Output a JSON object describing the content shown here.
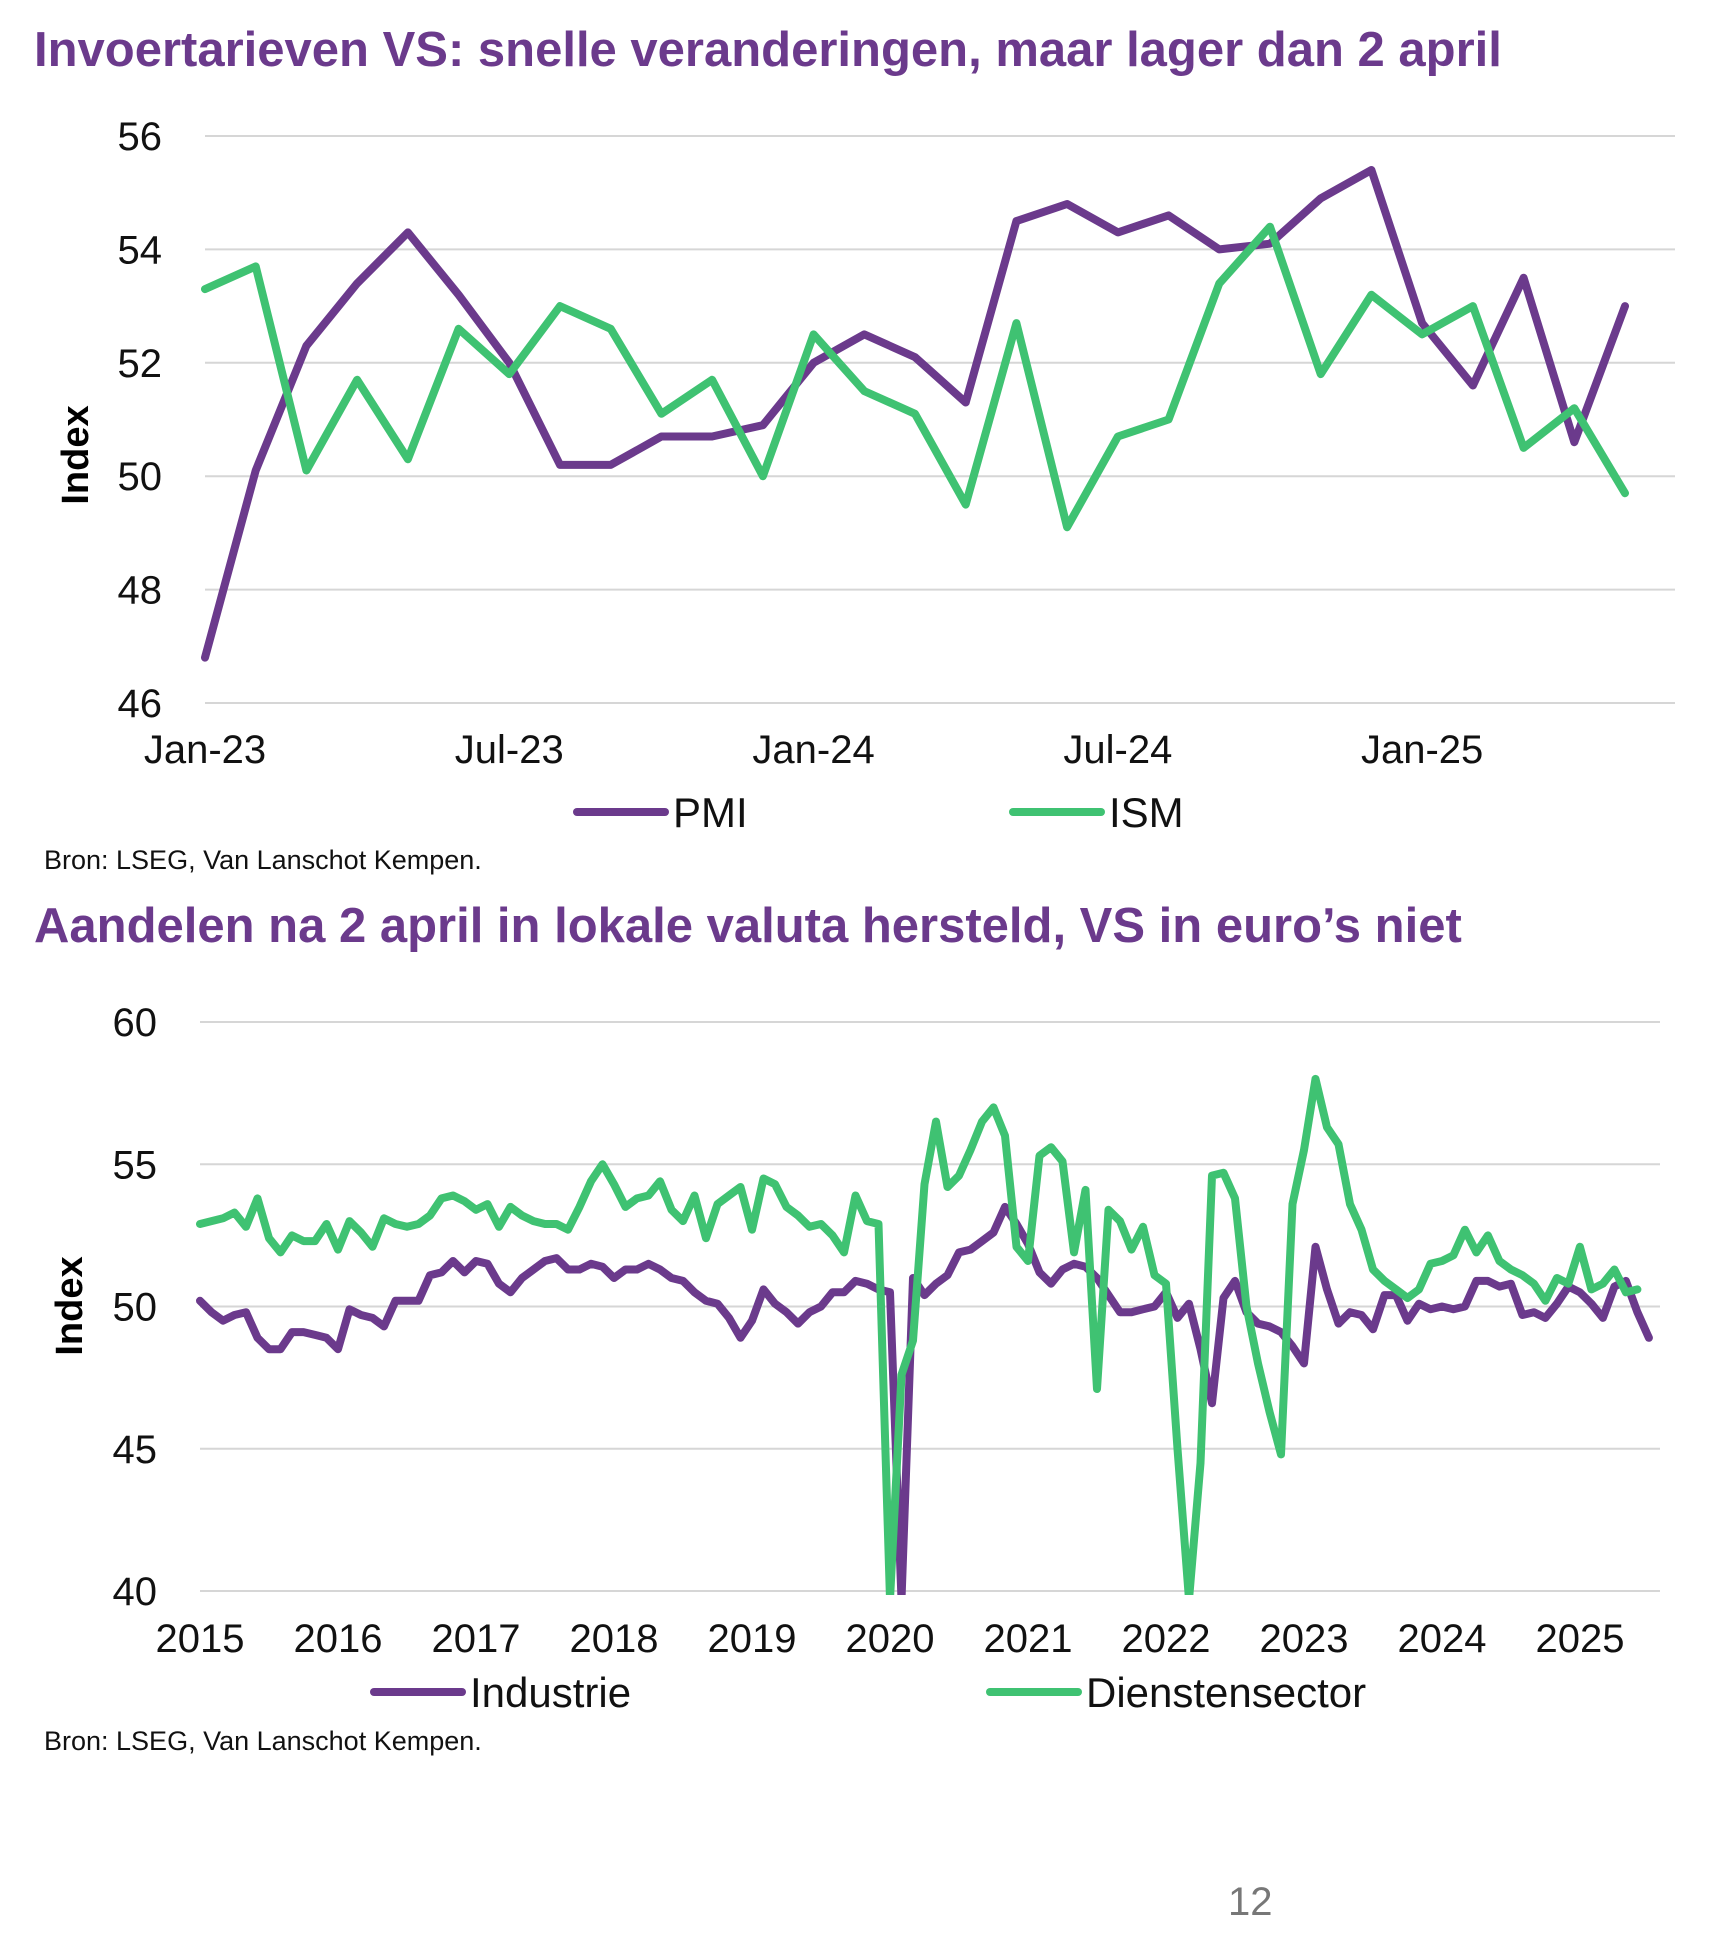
{
  "page_number": "12",
  "colors": {
    "title": "#6b3a8c",
    "pmi": "#6b3a8c",
    "ism": "#3fc272",
    "grid": "#d6d6d6"
  },
  "chart_data": [
    {
      "type": "line",
      "title": "Invoertarieven VS: snelle veranderingen, maar lager dan 2 april",
      "ylabel": "Index",
      "xlabel": "",
      "ylim": [
        46,
        56
      ],
      "yticks": [
        46,
        48,
        50,
        52,
        54,
        56
      ],
      "xtick_labels": [
        {
          "label": "Jan-23",
          "index": 0
        },
        {
          "label": "Jul-23",
          "index": 6
        },
        {
          "label": "Jan-24",
          "index": 12
        },
        {
          "label": "Jul-24",
          "index": 18
        },
        {
          "label": "Jan-25",
          "index": 24
        }
      ],
      "x": [
        "Jan-23",
        "Feb-23",
        "Mar-23",
        "Apr-23",
        "May-23",
        "Jun-23",
        "Jul-23",
        "Aug-23",
        "Sep-23",
        "Oct-23",
        "Nov-23",
        "Dec-23",
        "Jan-24",
        "Feb-24",
        "Mar-24",
        "Apr-24",
        "May-24",
        "Jun-24",
        "Jul-24",
        "Aug-24",
        "Sep-24",
        "Oct-24",
        "Nov-24",
        "Dec-24",
        "Jan-25",
        "Feb-25",
        "Mar-25",
        "Apr-25",
        "May-25"
      ],
      "series": [
        {
          "name": "PMI",
          "color": "#6b3a8c",
          "values": [
            46.8,
            50.1,
            52.3,
            53.4,
            54.3,
            53.2,
            52.0,
            50.2,
            50.2,
            50.7,
            50.7,
            50.9,
            52.0,
            52.5,
            52.1,
            51.3,
            54.5,
            54.8,
            54.3,
            54.6,
            54.0,
            54.1,
            54.9,
            55.4,
            52.7,
            51.6,
            53.5,
            50.6,
            53.0
          ]
        },
        {
          "name": "ISM",
          "color": "#3fc272",
          "values": [
            53.3,
            53.7,
            50.1,
            51.7,
            50.3,
            52.6,
            51.8,
            53.0,
            52.6,
            51.1,
            51.7,
            50.0,
            52.5,
            51.5,
            51.1,
            49.5,
            52.7,
            49.1,
            50.7,
            51.0,
            53.4,
            54.4,
            51.8,
            53.2,
            52.5,
            53.0,
            50.5,
            51.2,
            49.7
          ]
        }
      ],
      "legend": [
        "PMI",
        "ISM"
      ],
      "legend_position": "bottom-center",
      "source": "Bron: LSEG, Van Lanschot Kempen."
    },
    {
      "type": "line",
      "title": "Aandelen na 2 april in lokale valuta hersteld, VS in euro’s niet",
      "ylabel": "Index",
      "xlabel": "",
      "ylim": [
        40,
        60
      ],
      "xlim": [
        2015,
        2025.42
      ],
      "yticks": [
        40,
        45,
        50,
        55,
        60
      ],
      "xticks": [
        "2015",
        "2016",
        "2017",
        "2018",
        "2019",
        "2020",
        "2021",
        "2022",
        "2023",
        "2024",
        "2025"
      ],
      "series": [
        {
          "name": "Industrie",
          "color": "#6b3a8c",
          "start": 2015.0,
          "step": 0.08333,
          "values": [
            50.2,
            49.8,
            49.5,
            49.7,
            49.8,
            48.9,
            48.5,
            48.5,
            49.1,
            49.1,
            49.0,
            48.9,
            48.5,
            49.9,
            49.7,
            49.6,
            49.3,
            50.2,
            50.2,
            50.2,
            51.1,
            51.2,
            51.6,
            51.2,
            51.6,
            51.5,
            50.8,
            50.5,
            51.0,
            51.3,
            51.6,
            51.7,
            51.3,
            51.3,
            51.5,
            51.4,
            51.0,
            51.3,
            51.3,
            51.5,
            51.3,
            51.0,
            50.9,
            50.5,
            50.2,
            50.1,
            49.6,
            48.9,
            49.5,
            50.6,
            50.1,
            49.8,
            49.4,
            49.8,
            50.0,
            50.5,
            50.5,
            50.9,
            50.8,
            50.6,
            50.5,
            39.7,
            51.0,
            50.4,
            50.8,
            51.1,
            51.9,
            52.0,
            52.3,
            52.6,
            53.5,
            52.9,
            52.2,
            51.2,
            50.8,
            51.3,
            51.5,
            51.4,
            51.0,
            50.4,
            49.8,
            49.8,
            49.9,
            50.0,
            50.5,
            49.6,
            50.1,
            48.5,
            46.6,
            50.3,
            50.9,
            49.8,
            49.4,
            49.3,
            49.1,
            48.6,
            48.0,
            52.1,
            50.6,
            49.4,
            49.8,
            49.7,
            49.2,
            50.4,
            50.4,
            49.5,
            50.1,
            49.9,
            50.0,
            49.9,
            50.0,
            50.9,
            50.9,
            50.7,
            50.8,
            49.7,
            49.8,
            49.6,
            50.1,
            50.7,
            50.5,
            50.1,
            49.6,
            50.7,
            50.9,
            49.8,
            48.9
          ]
        },
        {
          "name": "Dienstensector",
          "color": "#3fc272",
          "start": 2015.0,
          "step": 0.08333,
          "values": [
            52.9,
            53.0,
            53.1,
            53.3,
            52.8,
            53.8,
            52.4,
            51.9,
            52.5,
            52.3,
            52.3,
            52.9,
            52.0,
            53.0,
            52.6,
            52.1,
            53.1,
            52.9,
            52.8,
            52.9,
            53.2,
            53.8,
            53.9,
            53.7,
            53.4,
            53.6,
            52.8,
            53.5,
            53.2,
            53.0,
            52.9,
            52.9,
            52.7,
            53.5,
            54.4,
            55.0,
            54.3,
            53.5,
            53.8,
            53.9,
            54.4,
            53.4,
            53.0,
            53.9,
            52.4,
            53.6,
            53.9,
            54.2,
            52.7,
            54.5,
            54.3,
            53.5,
            53.2,
            52.8,
            52.9,
            52.5,
            51.9,
            53.9,
            53.0,
            52.9,
            39.7,
            47.6,
            48.8,
            54.3,
            56.5,
            54.2,
            54.6,
            55.5,
            56.5,
            57.0,
            56.0,
            52.1,
            51.6,
            55.3,
            55.6,
            55.1,
            51.9,
            54.1,
            47.1,
            53.4,
            53.0,
            52.0,
            52.8,
            51.1,
            50.8,
            45.0,
            39.7,
            44.5,
            54.6,
            54.7,
            53.8,
            50.0,
            48.0,
            46.3,
            44.8,
            53.6,
            55.5,
            58.0,
            56.3,
            55.7,
            53.6,
            52.7,
            51.3,
            50.9,
            50.6,
            50.3,
            50.6,
            51.5,
            51.6,
            51.8,
            52.7,
            51.9,
            52.5,
            51.6,
            51.3,
            51.1,
            50.8,
            50.2,
            51.0,
            50.8,
            52.1,
            50.6,
            50.8,
            51.3,
            50.5,
            50.6
          ]
        }
      ],
      "legend": [
        "Industrie",
        "Dienstensector"
      ],
      "legend_position": "bottom-center",
      "source": "Bron: LSEG, Van Lanschot Kempen."
    }
  ]
}
